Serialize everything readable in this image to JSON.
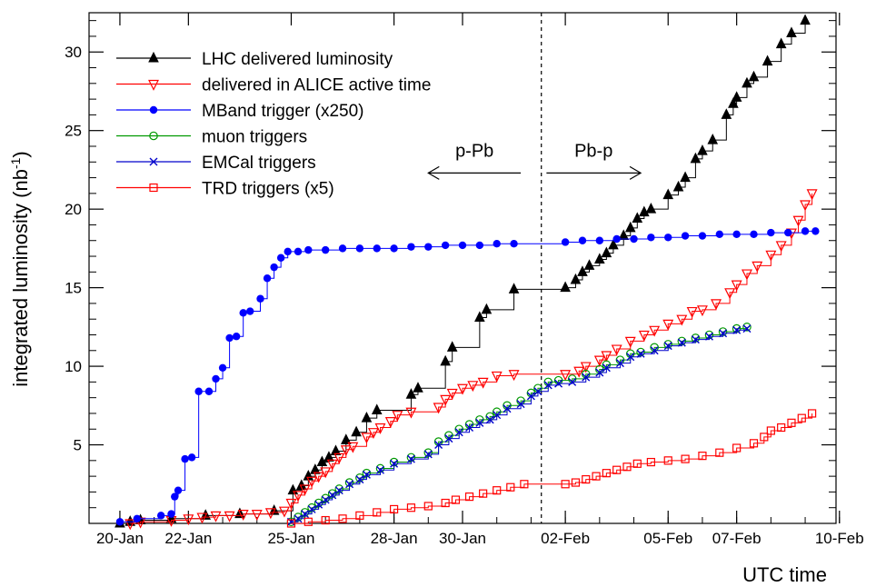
{
  "chart_data": {
    "type": "line",
    "xlabel": "UTC time",
    "ylabel": "integrated luminosity (nb",
    "ylabel_sup": "-1",
    "ylabel_close": ")",
    "x_unit": "days since 20-Jan",
    "xlim": [
      -0.9,
      20.9
    ],
    "ylim": [
      0,
      32.5
    ],
    "x_ticks": [
      {
        "label": "20-Jan",
        "value": 0
      },
      {
        "label": "22-Jan",
        "value": 2
      },
      {
        "label": "25-Jan",
        "value": 5
      },
      {
        "label": "28-Jan",
        "value": 8
      },
      {
        "label": "30-Jan",
        "value": 10
      },
      {
        "label": "02-Feb",
        "value": 13
      },
      {
        "label": "05-Feb",
        "value": 16
      },
      {
        "label": "07-Feb",
        "value": 18
      },
      {
        "label": "10-Feb",
        "value": 21
      }
    ],
    "y_ticks": [
      5,
      10,
      15,
      20,
      25,
      30
    ],
    "divider": {
      "x": 12.3
    },
    "annotations": [
      {
        "label": "p-Pb",
        "direction": "left",
        "x_from": 11.7,
        "x_to": 9.0,
        "y": 22.3
      },
      {
        "label": "Pb-p",
        "direction": "right",
        "x_from": 12.45,
        "x_to": 15.2,
        "y": 22.3
      }
    ],
    "legend_position": "top-left",
    "series": [
      {
        "name": "LHC delivered luminosity",
        "color": "#000000",
        "marker": "triangle-filled",
        "points": [
          [
            0,
            0
          ],
          [
            0.3,
            0.1
          ],
          [
            0.6,
            0.2
          ],
          [
            1.5,
            0.3
          ],
          [
            2.5,
            0.5
          ],
          [
            3.5,
            0.6
          ],
          [
            4.5,
            0.8
          ],
          [
            5.05,
            2.1
          ],
          [
            5.3,
            2.4
          ],
          [
            5.5,
            3.0
          ],
          [
            5.7,
            3.4
          ],
          [
            5.9,
            3.9
          ],
          [
            6.1,
            4.2
          ],
          [
            6.3,
            4.6
          ],
          [
            6.6,
            5.3
          ],
          [
            6.9,
            5.8
          ],
          [
            7.2,
            6.7
          ],
          [
            7.5,
            7.2
          ],
          [
            8.5,
            8.2
          ],
          [
            8.7,
            8.6
          ],
          [
            9.5,
            10.3
          ],
          [
            9.7,
            11.2
          ],
          [
            10.5,
            13.1
          ],
          [
            10.7,
            13.6
          ],
          [
            11.5,
            14.9
          ],
          [
            13.0,
            15.0
          ],
          [
            13.3,
            15.5
          ],
          [
            13.5,
            16.0
          ],
          [
            13.7,
            16.4
          ],
          [
            14.0,
            16.8
          ],
          [
            14.2,
            17.2
          ],
          [
            14.4,
            17.7
          ],
          [
            14.7,
            18.3
          ],
          [
            14.9,
            18.8
          ],
          [
            15.1,
            19.4
          ],
          [
            15.3,
            19.8
          ],
          [
            15.5,
            20.0
          ],
          [
            16.0,
            20.9
          ],
          [
            16.3,
            21.4
          ],
          [
            16.5,
            22.0
          ],
          [
            16.8,
            23.2
          ],
          [
            17.0,
            23.7
          ],
          [
            17.3,
            24.4
          ],
          [
            17.7,
            26.0
          ],
          [
            17.9,
            26.7
          ],
          [
            18.0,
            27.1
          ],
          [
            18.3,
            28.0
          ],
          [
            18.5,
            28.4
          ],
          [
            18.9,
            29.4
          ],
          [
            19.3,
            30.5
          ],
          [
            19.6,
            31.2
          ],
          [
            20.0,
            32.0
          ]
        ]
      },
      {
        "name": "delivered in ALICE active time",
        "color": "#ff0000",
        "marker": "triangle-down-open",
        "points": [
          [
            0.3,
            0
          ],
          [
            0.6,
            0.1
          ],
          [
            1.5,
            0.2
          ],
          [
            2.0,
            0.3
          ],
          [
            2.4,
            0.4
          ],
          [
            2.8,
            0.5
          ],
          [
            3.2,
            0.5
          ],
          [
            3.6,
            0.6
          ],
          [
            4.0,
            0.6
          ],
          [
            4.4,
            0.7
          ],
          [
            4.8,
            0.8
          ],
          [
            5.0,
            1.3
          ],
          [
            5.2,
            1.8
          ],
          [
            5.4,
            2.2
          ],
          [
            5.6,
            2.7
          ],
          [
            5.8,
            3.0
          ],
          [
            6.0,
            3.3
          ],
          [
            6.2,
            3.8
          ],
          [
            6.4,
            4.2
          ],
          [
            6.6,
            4.7
          ],
          [
            6.8,
            4.9
          ],
          [
            7.2,
            5.5
          ],
          [
            7.4,
            5.8
          ],
          [
            7.6,
            6.1
          ],
          [
            7.9,
            6.5
          ],
          [
            8.1,
            6.9
          ],
          [
            8.5,
            7.1
          ],
          [
            9.3,
            7.4
          ],
          [
            9.5,
            7.9
          ],
          [
            9.7,
            8.3
          ],
          [
            10.0,
            8.6
          ],
          [
            10.3,
            8.8
          ],
          [
            10.6,
            9.0
          ],
          [
            11.0,
            9.4
          ],
          [
            11.5,
            9.5
          ],
          [
            13.0,
            9.5
          ],
          [
            13.4,
            9.7
          ],
          [
            13.6,
            10.0
          ],
          [
            14.0,
            10.4
          ],
          [
            14.2,
            10.7
          ],
          [
            14.5,
            11.1
          ],
          [
            14.9,
            11.6
          ],
          [
            15.3,
            12.0
          ],
          [
            15.6,
            12.3
          ],
          [
            16.0,
            12.7
          ],
          [
            16.4,
            13.0
          ],
          [
            16.7,
            13.5
          ],
          [
            17.0,
            13.6
          ],
          [
            17.4,
            14.0
          ],
          [
            17.8,
            14.7
          ],
          [
            18.0,
            15.2
          ],
          [
            18.3,
            15.9
          ],
          [
            18.6,
            16.4
          ],
          [
            19.0,
            17.1
          ],
          [
            19.3,
            17.7
          ],
          [
            19.6,
            18.5
          ],
          [
            19.8,
            19.3
          ],
          [
            20.0,
            20.3
          ],
          [
            20.2,
            21.0
          ]
        ]
      },
      {
        "name": "MBand trigger (x250)",
        "color": "#0000ff",
        "marker": "circle-filled",
        "points": [
          [
            0,
            0.1
          ],
          [
            0.5,
            0.3
          ],
          [
            1.2,
            0.5
          ],
          [
            1.5,
            0.6
          ],
          [
            1.6,
            1.7
          ],
          [
            1.7,
            2.1
          ],
          [
            1.9,
            4.1
          ],
          [
            2.1,
            4.2
          ],
          [
            2.3,
            8.4
          ],
          [
            2.6,
            8.4
          ],
          [
            2.8,
            9.2
          ],
          [
            3.0,
            9.9
          ],
          [
            3.2,
            11.8
          ],
          [
            3.4,
            11.9
          ],
          [
            3.6,
            13.4
          ],
          [
            3.8,
            13.5
          ],
          [
            4.1,
            14.3
          ],
          [
            4.3,
            15.6
          ],
          [
            4.5,
            16.3
          ],
          [
            4.7,
            16.9
          ],
          [
            4.9,
            17.3
          ],
          [
            5.2,
            17.3
          ],
          [
            5.5,
            17.4
          ],
          [
            6.0,
            17.4
          ],
          [
            6.5,
            17.5
          ],
          [
            7.0,
            17.5
          ],
          [
            7.5,
            17.5
          ],
          [
            8.0,
            17.5
          ],
          [
            8.5,
            17.6
          ],
          [
            9.0,
            17.6
          ],
          [
            9.5,
            17.7
          ],
          [
            10.0,
            17.7
          ],
          [
            10.5,
            17.7
          ],
          [
            11.0,
            17.8
          ],
          [
            11.5,
            17.8
          ],
          [
            13.0,
            17.9
          ],
          [
            13.5,
            18.0
          ],
          [
            14.0,
            18.0
          ],
          [
            14.5,
            18.1
          ],
          [
            15.0,
            18.1
          ],
          [
            15.5,
            18.2
          ],
          [
            16.0,
            18.2
          ],
          [
            16.5,
            18.3
          ],
          [
            17.0,
            18.3
          ],
          [
            17.5,
            18.4
          ],
          [
            18.0,
            18.4
          ],
          [
            18.5,
            18.4
          ],
          [
            19.0,
            18.5
          ],
          [
            19.5,
            18.5
          ],
          [
            20.0,
            18.6
          ],
          [
            20.3,
            18.6
          ]
        ]
      },
      {
        "name": "muon triggers",
        "color": "#009900",
        "marker": "circle-open",
        "points": [
          [
            5.0,
            0.1
          ],
          [
            5.2,
            0.4
          ],
          [
            5.4,
            0.7
          ],
          [
            5.6,
            1.0
          ],
          [
            5.8,
            1.3
          ],
          [
            6.0,
            1.6
          ],
          [
            6.2,
            1.9
          ],
          [
            6.4,
            2.2
          ],
          [
            6.7,
            2.6
          ],
          [
            7.0,
            2.9
          ],
          [
            7.2,
            3.2
          ],
          [
            7.6,
            3.5
          ],
          [
            8.0,
            3.9
          ],
          [
            8.5,
            4.2
          ],
          [
            9.0,
            4.5
          ],
          [
            9.3,
            5.2
          ],
          [
            9.6,
            5.6
          ],
          [
            9.9,
            6.0
          ],
          [
            10.2,
            6.3
          ],
          [
            10.5,
            6.6
          ],
          [
            10.8,
            6.8
          ],
          [
            11.0,
            7.1
          ],
          [
            11.3,
            7.5
          ],
          [
            11.7,
            7.8
          ],
          [
            12.0,
            8.3
          ],
          [
            12.2,
            8.6
          ],
          [
            12.5,
            9.0
          ],
          [
            12.8,
            9.1
          ],
          [
            13.2,
            9.2
          ],
          [
            13.6,
            9.5
          ],
          [
            14.0,
            9.8
          ],
          [
            14.2,
            10.1
          ],
          [
            14.6,
            10.4
          ],
          [
            14.9,
            10.8
          ],
          [
            15.2,
            10.9
          ],
          [
            15.6,
            11.2
          ],
          [
            16.0,
            11.4
          ],
          [
            16.4,
            11.6
          ],
          [
            16.8,
            11.8
          ],
          [
            17.2,
            12.0
          ],
          [
            17.6,
            12.2
          ],
          [
            18.0,
            12.4
          ],
          [
            18.3,
            12.5
          ]
        ]
      },
      {
        "name": "EMCal triggers",
        "color": "#0000cc",
        "marker": "cross",
        "points": [
          [
            5.0,
            0.1
          ],
          [
            5.2,
            0.3
          ],
          [
            5.4,
            0.6
          ],
          [
            5.6,
            0.9
          ],
          [
            5.8,
            1.2
          ],
          [
            6.0,
            1.5
          ],
          [
            6.2,
            1.8
          ],
          [
            6.4,
            2.1
          ],
          [
            6.7,
            2.5
          ],
          [
            7.0,
            2.8
          ],
          [
            7.2,
            3.1
          ],
          [
            7.6,
            3.4
          ],
          [
            8.0,
            3.8
          ],
          [
            8.5,
            4.1
          ],
          [
            9.0,
            4.4
          ],
          [
            9.3,
            5.0
          ],
          [
            9.6,
            5.4
          ],
          [
            9.9,
            5.8
          ],
          [
            10.2,
            6.1
          ],
          [
            10.5,
            6.4
          ],
          [
            10.8,
            6.6
          ],
          [
            11.0,
            6.9
          ],
          [
            11.3,
            7.3
          ],
          [
            11.7,
            7.6
          ],
          [
            12.0,
            8.1
          ],
          [
            12.2,
            8.4
          ],
          [
            12.5,
            8.8
          ],
          [
            12.8,
            8.9
          ],
          [
            13.2,
            9.0
          ],
          [
            13.6,
            9.3
          ],
          [
            14.0,
            9.6
          ],
          [
            14.2,
            9.9
          ],
          [
            14.6,
            10.2
          ],
          [
            14.9,
            10.6
          ],
          [
            15.2,
            10.8
          ],
          [
            15.6,
            11.0
          ],
          [
            16.0,
            11.3
          ],
          [
            16.4,
            11.5
          ],
          [
            16.8,
            11.7
          ],
          [
            17.2,
            11.9
          ],
          [
            17.6,
            12.1
          ],
          [
            18.0,
            12.3
          ],
          [
            18.3,
            12.4
          ]
        ]
      },
      {
        "name": "TRD triggers (x5)",
        "color": "#ff0000",
        "marker": "square-open",
        "points": [
          [
            5.0,
            0
          ],
          [
            5.5,
            0.1
          ],
          [
            6.0,
            0.2
          ],
          [
            6.5,
            0.3
          ],
          [
            7.0,
            0.5
          ],
          [
            7.5,
            0.7
          ],
          [
            8.0,
            0.9
          ],
          [
            8.5,
            1.0
          ],
          [
            9.0,
            1.1
          ],
          [
            9.5,
            1.3
          ],
          [
            9.8,
            1.5
          ],
          [
            10.2,
            1.7
          ],
          [
            10.6,
            1.9
          ],
          [
            11.0,
            2.1
          ],
          [
            11.4,
            2.3
          ],
          [
            11.8,
            2.5
          ],
          [
            13.0,
            2.5
          ],
          [
            13.3,
            2.6
          ],
          [
            13.6,
            2.8
          ],
          [
            13.9,
            3.0
          ],
          [
            14.2,
            3.2
          ],
          [
            14.5,
            3.4
          ],
          [
            14.8,
            3.6
          ],
          [
            15.1,
            3.8
          ],
          [
            15.5,
            3.9
          ],
          [
            16.0,
            4.0
          ],
          [
            16.5,
            4.1
          ],
          [
            17.0,
            4.3
          ],
          [
            17.5,
            4.5
          ],
          [
            18.0,
            4.8
          ],
          [
            18.5,
            5.1
          ],
          [
            18.8,
            5.5
          ],
          [
            19.0,
            5.9
          ],
          [
            19.3,
            6.1
          ],
          [
            19.6,
            6.4
          ],
          [
            19.9,
            6.7
          ],
          [
            20.2,
            7.0
          ]
        ]
      }
    ]
  }
}
